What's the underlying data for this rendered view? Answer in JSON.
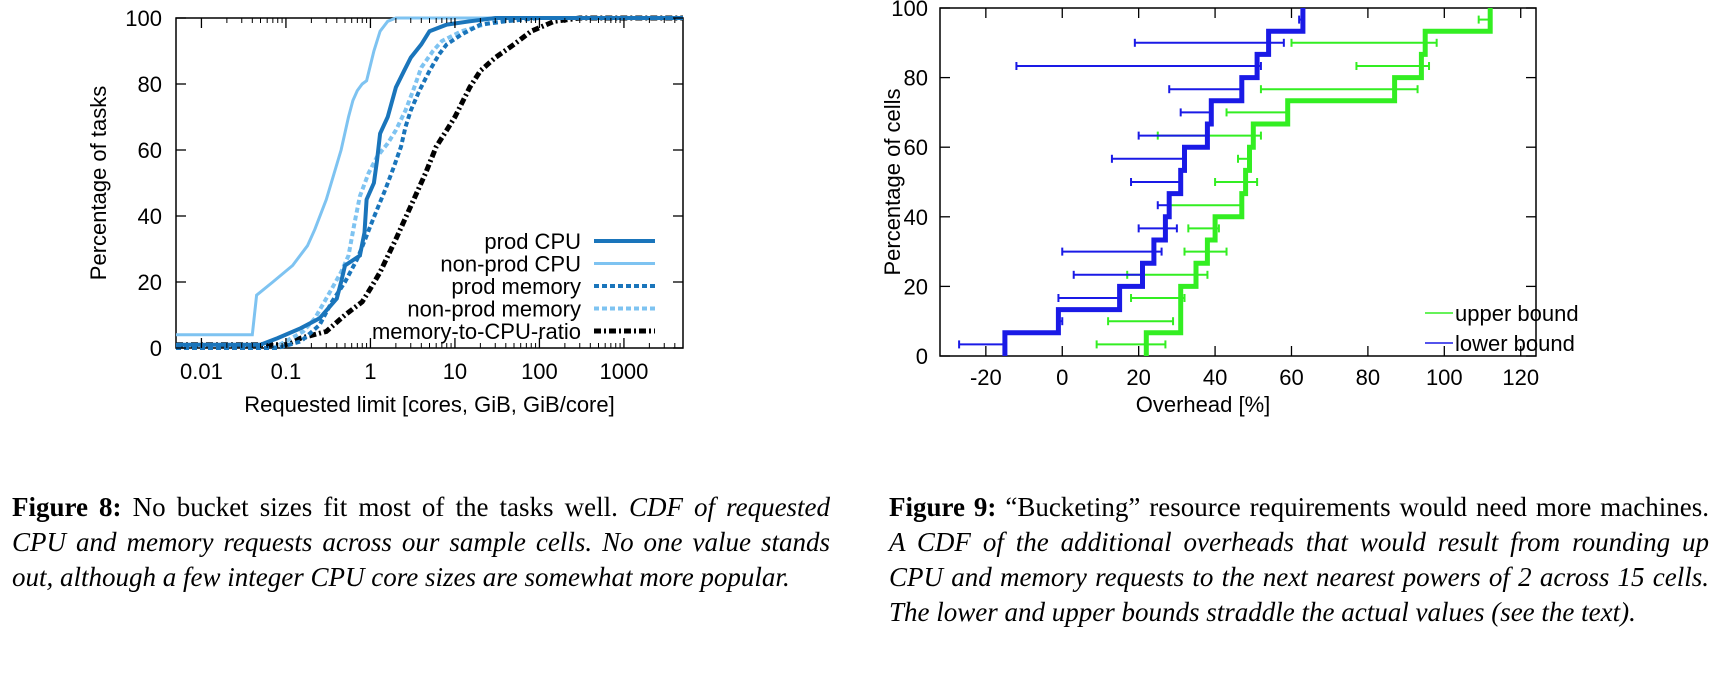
{
  "chart_data": [
    {
      "type": "line",
      "scale_x": "log",
      "xlabel": "Requested limit [cores, GiB, GiB/core]",
      "ylabel": "Percentage of tasks",
      "xlim": [
        0.005,
        5000
      ],
      "ylim": [
        0,
        100
      ],
      "x_ticks": [
        {
          "value": 0.01,
          "label": "0.01"
        },
        {
          "value": 0.1,
          "label": "0.1"
        },
        {
          "value": 1,
          "label": "1"
        },
        {
          "value": 10,
          "label": "10"
        },
        {
          "value": 100,
          "label": "100"
        },
        {
          "value": 1000,
          "label": "1000"
        }
      ],
      "y_ticks": [
        0,
        20,
        40,
        60,
        80,
        100
      ],
      "grid": false,
      "legend_position": "bottom-right",
      "series": [
        {
          "name": "prod CPU",
          "color": "#1a75bb",
          "style": "solid-thick",
          "points": [
            [
              0.005,
              1
            ],
            [
              0.05,
              1
            ],
            [
              0.08,
              3
            ],
            [
              0.15,
              6
            ],
            [
              0.25,
              9
            ],
            [
              0.4,
              15
            ],
            [
              0.45,
              20
            ],
            [
              0.5,
              25
            ],
            [
              0.75,
              28
            ],
            [
              0.85,
              35
            ],
            [
              0.9,
              45
            ],
            [
              1.1,
              50
            ],
            [
              1.2,
              57
            ],
            [
              1.3,
              65
            ],
            [
              1.6,
              70
            ],
            [
              2,
              79
            ],
            [
              2.5,
              84
            ],
            [
              3,
              88
            ],
            [
              4,
              92
            ],
            [
              5,
              96
            ],
            [
              8,
              98
            ],
            [
              15,
              99
            ],
            [
              30,
              100
            ],
            [
              5000,
              100
            ]
          ]
        },
        {
          "name": "non-prod CPU",
          "color": "#7ec3f1",
          "style": "solid",
          "points": [
            [
              0.005,
              4
            ],
            [
              0.04,
              4
            ],
            [
              0.045,
              16
            ],
            [
              0.07,
              20
            ],
            [
              0.12,
              25
            ],
            [
              0.18,
              31
            ],
            [
              0.22,
              36
            ],
            [
              0.3,
              45
            ],
            [
              0.45,
              60
            ],
            [
              0.55,
              70
            ],
            [
              0.62,
              75
            ],
            [
              0.7,
              78
            ],
            [
              0.8,
              80
            ],
            [
              0.9,
              81
            ],
            [
              1.1,
              90
            ],
            [
              1.3,
              96
            ],
            [
              1.6,
              99
            ],
            [
              2,
              100
            ],
            [
              5000,
              100
            ]
          ]
        },
        {
          "name": "prod memory",
          "color": "#1a75bb",
          "style": "dashed",
          "points": [
            [
              0.005,
              0
            ],
            [
              0.08,
              0
            ],
            [
              0.15,
              2
            ],
            [
              0.25,
              7
            ],
            [
              0.35,
              14
            ],
            [
              0.5,
              20
            ],
            [
              0.7,
              27
            ],
            [
              0.9,
              34
            ],
            [
              1,
              37
            ],
            [
              1.2,
              42
            ],
            [
              1.5,
              48
            ],
            [
              1.9,
              55
            ],
            [
              2.3,
              61
            ],
            [
              2.6,
              67
            ],
            [
              3,
              72
            ],
            [
              3.8,
              78
            ],
            [
              5,
              84
            ],
            [
              6.5,
              89
            ],
            [
              8,
              92
            ],
            [
              12,
              95
            ],
            [
              20,
              98
            ],
            [
              40,
              99
            ],
            [
              100,
              100
            ],
            [
              5000,
              100
            ]
          ]
        },
        {
          "name": "non-prod memory",
          "color": "#7ec3f1",
          "style": "dashed",
          "points": [
            [
              0.005,
              0
            ],
            [
              0.07,
              0
            ],
            [
              0.1,
              2
            ],
            [
              0.16,
              5
            ],
            [
              0.22,
              9
            ],
            [
              0.3,
              15
            ],
            [
              0.45,
              23
            ],
            [
              0.55,
              28
            ],
            [
              0.65,
              38
            ],
            [
              0.75,
              46
            ],
            [
              0.95,
              53
            ],
            [
              1.2,
              58
            ],
            [
              1.6,
              62
            ],
            [
              2,
              66
            ],
            [
              2.6,
              72
            ],
            [
              3.2,
              78
            ],
            [
              4,
              85
            ],
            [
              5.5,
              90
            ],
            [
              7,
              93
            ],
            [
              12,
              96
            ],
            [
              30,
              99
            ],
            [
              80,
              100
            ],
            [
              5000,
              100
            ]
          ]
        },
        {
          "name": "memory-to-CPU-ratio",
          "color": "#000000",
          "style": "dash-dot",
          "points": [
            [
              0.005,
              1
            ],
            [
              0.1,
              1
            ],
            [
              0.15,
              3
            ],
            [
              0.3,
              5
            ],
            [
              0.5,
              10
            ],
            [
              0.8,
              14
            ],
            [
              1,
              18
            ],
            [
              1.3,
              23
            ],
            [
              2,
              33
            ],
            [
              3,
              43
            ],
            [
              4.5,
              53
            ],
            [
              6,
              61
            ],
            [
              8,
              66
            ],
            [
              10,
              70
            ],
            [
              15,
              79
            ],
            [
              20,
              84
            ],
            [
              30,
              88
            ],
            [
              50,
              92
            ],
            [
              80,
              96
            ],
            [
              150,
              99
            ],
            [
              300,
              100
            ],
            [
              5000,
              100
            ]
          ]
        }
      ]
    },
    {
      "type": "step",
      "xlabel": "Overhead [%]",
      "ylabel": "Percentage of cells",
      "xlim": [
        -32,
        124
      ],
      "ylim": [
        0,
        100
      ],
      "x_ticks": [
        -20,
        0,
        20,
        40,
        60,
        80,
        100,
        120
      ],
      "y_ticks": [
        0,
        20,
        40,
        60,
        80,
        100
      ],
      "grid": false,
      "legend_position": "bottom-right",
      "series": [
        {
          "name": "upper bound",
          "color": "#33ee22",
          "steps": [
            [
              0,
              22
            ],
            [
              6.67,
              22
            ],
            [
              6.67,
              31
            ],
            [
              13.33,
              31
            ],
            [
              13.33,
              31
            ],
            [
              20,
              31
            ],
            [
              20,
              35
            ],
            [
              26.67,
              35
            ],
            [
              26.67,
              38
            ],
            [
              33.33,
              38
            ],
            [
              33.33,
              40
            ],
            [
              40,
              40
            ],
            [
              40,
              47
            ],
            [
              46.67,
              47
            ],
            [
              46.67,
              48
            ],
            [
              53.33,
              48
            ],
            [
              53.33,
              49
            ],
            [
              60,
              49
            ],
            [
              60,
              50
            ],
            [
              66.67,
              50
            ],
            [
              66.67,
              59
            ],
            [
              73.33,
              59
            ],
            [
              73.33,
              87
            ],
            [
              80,
              87
            ],
            [
              80,
              94
            ],
            [
              86.67,
              94
            ],
            [
              86.67,
              95
            ],
            [
              93.33,
              95
            ],
            [
              93.33,
              112
            ],
            [
              100,
              112
            ]
          ],
          "error_bars": [
            {
              "y": 3.33,
              "lo": 9,
              "hi": 27
            },
            {
              "y": 10,
              "lo": 12,
              "hi": 29
            },
            {
              "y": 16.67,
              "lo": 18,
              "hi": 32
            },
            {
              "y": 23.33,
              "lo": 17,
              "hi": 38
            },
            {
              "y": 30,
              "lo": 32,
              "hi": 43
            },
            {
              "y": 36.67,
              "lo": 33,
              "hi": 41
            },
            {
              "y": 43.33,
              "lo": 28,
              "hi": 47
            },
            {
              "y": 50,
              "lo": 40,
              "hi": 51
            },
            {
              "y": 56.67,
              "lo": 46,
              "hi": 49
            },
            {
              "y": 63.33,
              "lo": 25,
              "hi": 52
            },
            {
              "y": 70,
              "lo": 43,
              "hi": 59
            },
            {
              "y": 76.67,
              "lo": 52,
              "hi": 93
            },
            {
              "y": 83.33,
              "lo": 77,
              "hi": 96
            },
            {
              "y": 90,
              "lo": 60,
              "hi": 98
            },
            {
              "y": 96.67,
              "lo": 109,
              "hi": 112
            }
          ]
        },
        {
          "name": "lower bound",
          "color": "#1a1ae6",
          "steps": [
            [
              0,
              -15
            ],
            [
              6.67,
              -15
            ],
            [
              6.67,
              -1
            ],
            [
              13.33,
              -1
            ],
            [
              13.33,
              15
            ],
            [
              20,
              15
            ],
            [
              20,
              21
            ],
            [
              26.67,
              21
            ],
            [
              26.67,
              24
            ],
            [
              33.33,
              24
            ],
            [
              33.33,
              27
            ],
            [
              40,
              27
            ],
            [
              40,
              28
            ],
            [
              46.67,
              28
            ],
            [
              46.67,
              31
            ],
            [
              53.33,
              31
            ],
            [
              53.33,
              32
            ],
            [
              60,
              32
            ],
            [
              60,
              38
            ],
            [
              66.67,
              38
            ],
            [
              66.67,
              39
            ],
            [
              73.33,
              39
            ],
            [
              73.33,
              47
            ],
            [
              80,
              47
            ],
            [
              80,
              51
            ],
            [
              86.67,
              51
            ],
            [
              86.67,
              54
            ],
            [
              93.33,
              54
            ],
            [
              93.33,
              63
            ],
            [
              100,
              63
            ]
          ],
          "error_bars": [
            {
              "y": 3.33,
              "lo": -27,
              "hi": -15
            },
            {
              "y": 10,
              "lo": -1,
              "hi": 0
            },
            {
              "y": 16.67,
              "lo": -1,
              "hi": 15
            },
            {
              "y": 23.33,
              "lo": 3,
              "hi": 21
            },
            {
              "y": 30,
              "lo": 0,
              "hi": 26
            },
            {
              "y": 36.67,
              "lo": 20,
              "hi": 30
            },
            {
              "y": 43.33,
              "lo": 25,
              "hi": 28
            },
            {
              "y": 50,
              "lo": 18,
              "hi": 31
            },
            {
              "y": 56.67,
              "lo": 13,
              "hi": 32
            },
            {
              "y": 63.33,
              "lo": 20,
              "hi": 38
            },
            {
              "y": 70,
              "lo": 31,
              "hi": 39
            },
            {
              "y": 76.67,
              "lo": 28,
              "hi": 47
            },
            {
              "y": 83.33,
              "lo": -12,
              "hi": 52
            },
            {
              "y": 90,
              "lo": 19,
              "hi": 58
            },
            {
              "y": 96.67,
              "lo": 62,
              "hi": 63
            }
          ]
        }
      ]
    }
  ],
  "captions": {
    "fig8": {
      "lead": "Figure 8:",
      "body": "No bucket sizes fit most of the tasks well.",
      "italic": "CDF of requested CPU and memory requests across our sample cells. No one value stands out, although a few integer CPU core sizes are somewhat more popular."
    },
    "fig9": {
      "lead": "Figure 9:",
      "body": "“Bucketing” resource requirements would need more machines.",
      "italic": "A CDF of the additional overheads that would result from rounding up CPU and memory requests to the next nearest powers of 2 across 15 cells. The lower and upper bounds straddle the actual values (see the text)."
    }
  }
}
